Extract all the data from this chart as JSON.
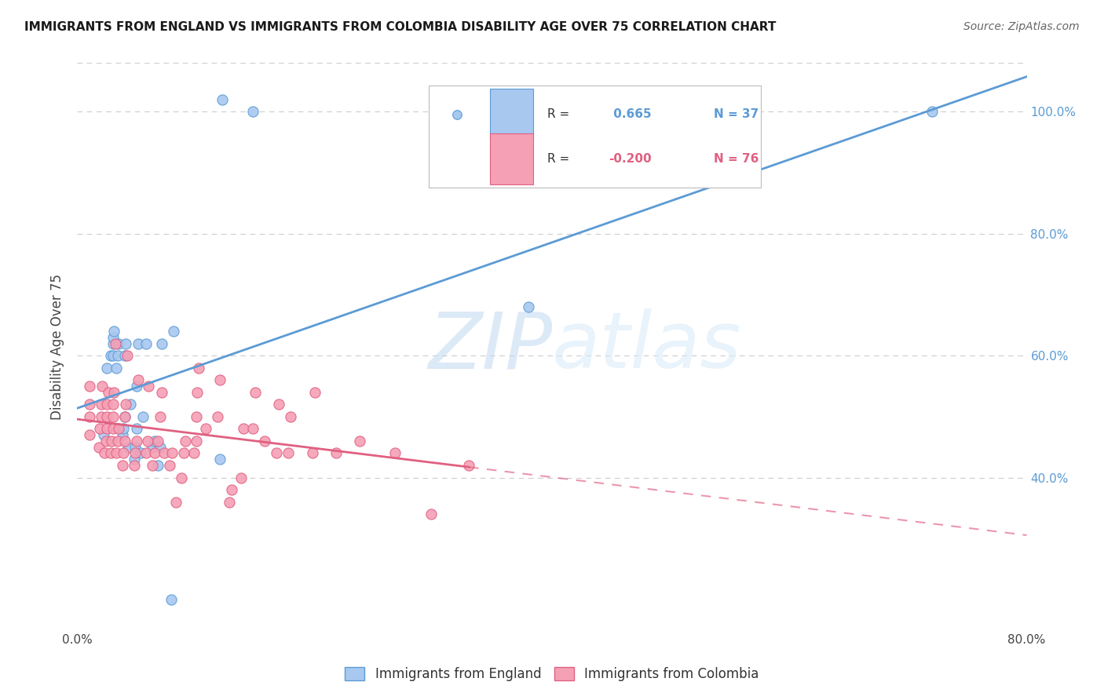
{
  "title": "IMMIGRANTS FROM ENGLAND VS IMMIGRANTS FROM COLOMBIA DISABILITY AGE OVER 75 CORRELATION CHART",
  "source": "Source: ZipAtlas.com",
  "ylabel": "Disability Age Over 75",
  "xlim": [
    0.0,
    0.8
  ],
  "ylim": [
    0.15,
    1.08
  ],
  "yticks": [
    0.4,
    0.6,
    0.8,
    1.0
  ],
  "ytick_labels": [
    "40.0%",
    "60.0%",
    "80.0%",
    "100.0%"
  ],
  "england_R": 0.665,
  "england_N": 37,
  "colombia_R": -0.2,
  "colombia_N": 76,
  "england_color": "#a8c8f0",
  "colombia_color": "#f5a0b5",
  "england_line_color": "#5b9bd5",
  "colombia_line_color": "#e06080",
  "watermark_zip": "ZIP",
  "watermark_atlas": "atlas",
  "england_x": [
    0.022,
    0.025,
    0.028,
    0.03,
    0.03,
    0.03,
    0.031,
    0.033,
    0.034,
    0.035,
    0.038,
    0.039,
    0.04,
    0.04,
    0.041,
    0.043,
    0.045,
    0.048,
    0.049,
    0.05,
    0.05,
    0.051,
    0.053,
    0.055,
    0.058,
    0.063,
    0.065,
    0.068,
    0.07,
    0.071,
    0.079,
    0.081,
    0.12,
    0.122,
    0.148,
    0.38,
    0.72
  ],
  "england_y": [
    0.47,
    0.58,
    0.6,
    0.6,
    0.62,
    0.63,
    0.64,
    0.58,
    0.6,
    0.62,
    0.47,
    0.48,
    0.5,
    0.6,
    0.62,
    0.45,
    0.52,
    0.43,
    0.45,
    0.48,
    0.55,
    0.62,
    0.44,
    0.5,
    0.62,
    0.45,
    0.46,
    0.42,
    0.45,
    0.62,
    0.2,
    0.64,
    0.43,
    1.02,
    1.0,
    0.68,
    1.0
  ],
  "colombia_x": [
    0.01,
    0.01,
    0.01,
    0.01,
    0.018,
    0.019,
    0.02,
    0.02,
    0.021,
    0.023,
    0.024,
    0.025,
    0.025,
    0.025,
    0.026,
    0.028,
    0.029,
    0.03,
    0.03,
    0.03,
    0.031,
    0.032,
    0.033,
    0.034,
    0.035,
    0.038,
    0.039,
    0.04,
    0.04,
    0.041,
    0.042,
    0.048,
    0.049,
    0.05,
    0.051,
    0.058,
    0.059,
    0.06,
    0.063,
    0.065,
    0.068,
    0.07,
    0.071,
    0.073,
    0.078,
    0.08,
    0.083,
    0.088,
    0.09,
    0.091,
    0.098,
    0.1,
    0.1,
    0.101,
    0.102,
    0.108,
    0.118,
    0.12,
    0.128,
    0.13,
    0.138,
    0.14,
    0.148,
    0.15,
    0.158,
    0.168,
    0.17,
    0.178,
    0.18,
    0.198,
    0.2,
    0.218,
    0.238,
    0.268,
    0.298,
    0.33
  ],
  "colombia_y": [
    0.47,
    0.5,
    0.52,
    0.55,
    0.45,
    0.48,
    0.5,
    0.52,
    0.55,
    0.44,
    0.46,
    0.48,
    0.5,
    0.52,
    0.54,
    0.44,
    0.46,
    0.48,
    0.5,
    0.52,
    0.54,
    0.62,
    0.44,
    0.46,
    0.48,
    0.42,
    0.44,
    0.46,
    0.5,
    0.52,
    0.6,
    0.42,
    0.44,
    0.46,
    0.56,
    0.44,
    0.46,
    0.55,
    0.42,
    0.44,
    0.46,
    0.5,
    0.54,
    0.44,
    0.42,
    0.44,
    0.36,
    0.4,
    0.44,
    0.46,
    0.44,
    0.46,
    0.5,
    0.54,
    0.58,
    0.48,
    0.5,
    0.56,
    0.36,
    0.38,
    0.4,
    0.48,
    0.48,
    0.54,
    0.46,
    0.44,
    0.52,
    0.44,
    0.5,
    0.44,
    0.54,
    0.44,
    0.46,
    0.44,
    0.34,
    0.42
  ]
}
